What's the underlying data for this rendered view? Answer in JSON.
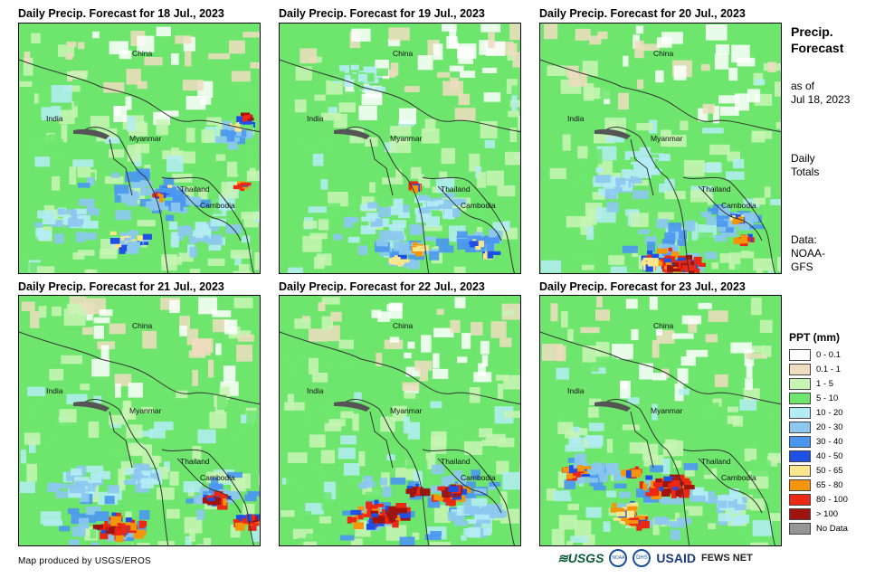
{
  "panels": [
    {
      "title": "Daily Precip. Forecast for 18 Jul., 2023"
    },
    {
      "title": "Daily Precip. Forecast for 19 Jul., 2023"
    },
    {
      "title": "Daily Precip. Forecast for 20 Jul., 2023"
    },
    {
      "title": "Daily Precip. Forecast for 21 Jul., 2023"
    },
    {
      "title": "Daily Precip. Forecast for 22 Jul., 2023"
    },
    {
      "title": "Daily Precip. Forecast for 23 Jul., 2023"
    }
  ],
  "places": {
    "china": "China",
    "india": "India",
    "myanmar": "Myanmar",
    "thailand": "Thailand",
    "cambodia": "Cambodia"
  },
  "side": {
    "title_line1": "Precip.",
    "title_line2": "Forecast",
    "asof_line1": "as of",
    "asof_line2": "Jul 18, 2023",
    "daily_line1": "Daily",
    "daily_line2": "Totals",
    "data_line1": "Data:",
    "data_line2": "NOAA-",
    "data_line3": "GFS"
  },
  "legend": {
    "title": "PPT (mm)",
    "items": [
      {
        "label": "0 - 0.1",
        "color": "#ffffff"
      },
      {
        "label": "0.1 - 1",
        "color": "#f0dcc0"
      },
      {
        "label": "1 - 5",
        "color": "#c8f5b4"
      },
      {
        "label": "5 - 10",
        "color": "#6ee66e"
      },
      {
        "label": "10 - 20",
        "color": "#b4ecf5"
      },
      {
        "label": "20 - 30",
        "color": "#8cc8f0"
      },
      {
        "label": "30 - 40",
        "color": "#4a96f0"
      },
      {
        "label": "40 - 50",
        "color": "#1e50e6"
      },
      {
        "label": "50 - 65",
        "color": "#fae68c"
      },
      {
        "label": "65 - 80",
        "color": "#f5960a"
      },
      {
        "label": "80 - 100",
        "color": "#eb2814"
      },
      {
        "label": "> 100",
        "color": "#a0140f"
      },
      {
        "label": "No Data",
        "color": "#969696"
      }
    ]
  },
  "footer": {
    "credit": "Map produced by USGS/EROS",
    "logo_usgs": "≋USGS",
    "logo_noaa": "NOAA",
    "logo_dhs": "DHS",
    "logo_usaid": "USAID",
    "logo_fews": "FEWS NET"
  }
}
